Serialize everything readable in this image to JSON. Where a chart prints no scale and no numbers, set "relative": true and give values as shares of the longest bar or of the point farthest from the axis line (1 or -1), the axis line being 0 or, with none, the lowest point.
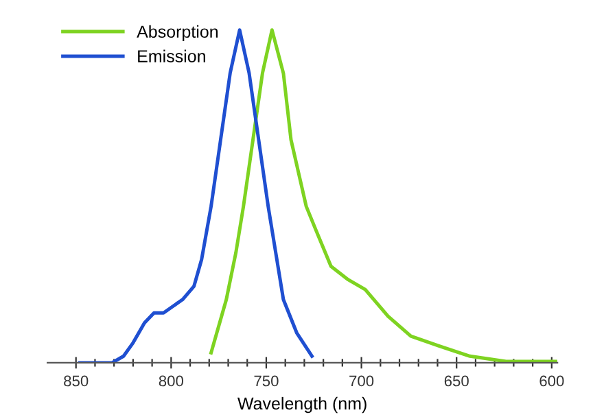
{
  "chart_data": {
    "type": "line",
    "relative": true,
    "xlabel": "Wavelength (nm)",
    "xlim": [
      865,
      597
    ],
    "xticks": [
      850,
      {
        "value": 840,
        "label": null
      },
      {
        "value": 830,
        "label": null
      },
      {
        "value": 820,
        "label": null
      },
      {
        "value": 810,
        "label": null
      },
      800,
      {
        "value": 790,
        "label": null
      },
      {
        "value": 780,
        "label": null
      },
      {
        "value": 770,
        "label": null
      },
      {
        "value": 760,
        "label": null
      },
      750,
      {
        "value": 740,
        "label": null
      },
      {
        "value": 730,
        "label": null
      },
      {
        "value": 720,
        "label": null
      },
      {
        "value": 710,
        "label": null
      },
      700,
      {
        "value": 690,
        "label": null
      },
      {
        "value": 680,
        "label": null
      },
      {
        "value": 670,
        "label": null
      },
      {
        "value": 660,
        "label": null
      },
      650,
      {
        "value": 640,
        "label": null
      },
      {
        "value": 630,
        "label": null
      },
      {
        "value": 620,
        "label": null
      },
      {
        "value": 610,
        "label": null
      },
      600
    ],
    "legend": "top left",
    "grid": false,
    "series": [
      {
        "name": "Absorption",
        "color": "#7ed321",
        "x": [
          779,
          771,
          766,
          762,
          757,
          752,
          747,
          741,
          737,
          729,
          724,
          716,
          707,
          698,
          686,
          674,
          659,
          643,
          624,
          598
        ],
        "values": [
          0.03,
          0.19,
          0.33,
          0.47,
          0.67,
          0.87,
          1,
          0.87,
          0.67,
          0.47,
          0.4,
          0.29,
          0.25,
          0.22,
          0.14,
          0.08,
          0.05,
          0.02,
          0.004,
          0.004
        ]
      },
      {
        "name": "Emission",
        "color": "#1f4fd1",
        "x": [
          848,
          831,
          825,
          820,
          814,
          809,
          804,
          794,
          788,
          784,
          779,
          774,
          769,
          764,
          759,
          754,
          749,
          745,
          741,
          734,
          726
        ],
        "values": [
          0,
          0,
          0.02,
          0.06,
          0.12,
          0.15,
          0.15,
          0.19,
          0.23,
          0.31,
          0.47,
          0.67,
          0.87,
          1,
          0.87,
          0.67,
          0.47,
          0.33,
          0.19,
          0.09,
          0.02
        ]
      }
    ]
  }
}
